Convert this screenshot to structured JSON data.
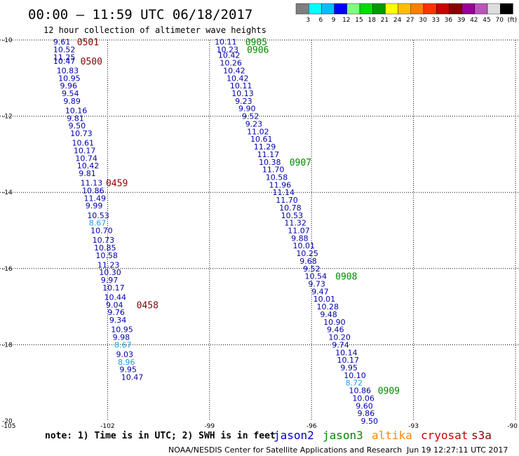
{
  "header": {
    "title": "00:00 – 11:59 UTC 06/18/2017",
    "subtitle": "12 hour collection of altimeter wave heights"
  },
  "colorbar": {
    "colors": [
      "#7f7f7f",
      "#00ffff",
      "#00bfff",
      "#0000ff",
      "#7fff7f",
      "#00dd00",
      "#009900",
      "#ffff00",
      "#ffbf00",
      "#ff7f00",
      "#ff3300",
      "#cc0000",
      "#880000",
      "#990099",
      "#bb55bb",
      "#dddddd",
      "#000000"
    ],
    "ticks": [
      "3",
      "6",
      "9",
      "12",
      "15",
      "18",
      "21",
      "24",
      "27",
      "30",
      "33",
      "36",
      "39",
      "42",
      "45",
      "70",
      "(ft)"
    ]
  },
  "axes": {
    "y_ticks": [
      "-10",
      "-12",
      "-14",
      "-16",
      "-18",
      "-20"
    ],
    "x_ticks": [
      "-105",
      "-102",
      "-99",
      "-96",
      "-93",
      "-90"
    ]
  },
  "footer": {
    "note": "note:  1) Time is in UTC;  2) SWH is in feet",
    "legend": [
      {
        "name": "jason2",
        "color": "#0000cc"
      },
      {
        "name": "jason3",
        "color": "#008800"
      },
      {
        "name": "altika",
        "color": "#ff8800"
      },
      {
        "name": "cryosat",
        "color": "#cc0000"
      },
      {
        "name": "s3a",
        "color": "#880000"
      }
    ],
    "credit": "NOAA/NESDIS Center for Satellite Applications and Research",
    "timestamp": "Jun 19 12:27:11 UTC 2017"
  },
  "chart_data": {
    "type": "scatter",
    "xlabel": "",
    "ylabel": "",
    "xlim": [
      -105,
      -90
    ],
    "ylim": [
      -20,
      -10
    ],
    "units": "ft",
    "series": [
      {
        "name": "s3a",
        "color": "#880000",
        "points": [
          {
            "x": -103.6,
            "y": -10.05,
            "v": "9.61"
          },
          {
            "x": -103.6,
            "y": -10.25,
            "v": "10.52"
          },
          {
            "x": -103.6,
            "y": -10.45,
            "v": "11.25"
          },
          {
            "x": -103.6,
            "y": -10.55,
            "v": "10.47"
          },
          {
            "x": -103.5,
            "y": -10.8,
            "v": "10.83"
          },
          {
            "x": -103.45,
            "y": -11.0,
            "v": "10.95"
          },
          {
            "x": -103.4,
            "y": -11.2,
            "v": "9.96"
          },
          {
            "x": -103.35,
            "y": -11.4,
            "v": "9.54"
          },
          {
            "x": -103.3,
            "y": -11.6,
            "v": "9.89"
          },
          {
            "x": -103.25,
            "y": -11.85,
            "v": "10.16"
          },
          {
            "x": -103.2,
            "y": -12.05,
            "v": "9.81"
          },
          {
            "x": -103.15,
            "y": -12.25,
            "v": "9.50"
          },
          {
            "x": -103.1,
            "y": -12.45,
            "v": "10.73"
          },
          {
            "x": -103.05,
            "y": -12.7,
            "v": "10.61"
          },
          {
            "x": -103.0,
            "y": -12.9,
            "v": "10.17"
          },
          {
            "x": -102.95,
            "y": -13.1,
            "v": "10.74"
          },
          {
            "x": -102.9,
            "y": -13.3,
            "v": "10.42"
          },
          {
            "x": -102.85,
            "y": -13.5,
            "v": "9.81"
          },
          {
            "x": -102.8,
            "y": -13.75,
            "v": "11.13"
          },
          {
            "x": -102.75,
            "y": -13.95,
            "v": "10.86"
          },
          {
            "x": -102.7,
            "y": -14.15,
            "v": "11.49"
          },
          {
            "x": -102.65,
            "y": -14.35,
            "v": "9.99"
          },
          {
            "x": -102.6,
            "y": -14.6,
            "v": "10.53"
          },
          {
            "x": -102.55,
            "y": -14.8,
            "v": "8.67"
          },
          {
            "x": -102.5,
            "y": -15.0,
            "v": "10.70"
          },
          {
            "x": -102.45,
            "y": -15.25,
            "v": "10.73"
          },
          {
            "x": -102.4,
            "y": -15.45,
            "v": "10.85"
          },
          {
            "x": -102.35,
            "y": -15.65,
            "v": "10.58"
          },
          {
            "x": -102.3,
            "y": -15.9,
            "v": "11.23"
          },
          {
            "x": -102.25,
            "y": -16.1,
            "v": "10.30"
          },
          {
            "x": -102.2,
            "y": -16.3,
            "v": "9.97"
          },
          {
            "x": -102.15,
            "y": -16.5,
            "v": "10.17"
          },
          {
            "x": -102.1,
            "y": -16.75,
            "v": "10.44"
          },
          {
            "x": -102.05,
            "y": -16.95,
            "v": "9.04"
          },
          {
            "x": -102.0,
            "y": -17.15,
            "v": "9.76"
          },
          {
            "x": -101.95,
            "y": -17.35,
            "v": "9.34"
          },
          {
            "x": -101.9,
            "y": -17.6,
            "v": "10.95"
          },
          {
            "x": -101.85,
            "y": -17.8,
            "v": "9.98"
          },
          {
            "x": -101.8,
            "y": -18.0,
            "v": "8.67"
          },
          {
            "x": -101.75,
            "y": -18.25,
            "v": "9.03"
          },
          {
            "x": -101.7,
            "y": -18.45,
            "v": "8.96"
          },
          {
            "x": -101.65,
            "y": -18.65,
            "v": "9.95"
          },
          {
            "x": -101.6,
            "y": -18.85,
            "v": "10.47"
          }
        ],
        "time_labels": [
          {
            "x": -102.9,
            "y": -10.05,
            "t": "0501"
          },
          {
            "x": -102.8,
            "y": -10.55,
            "t": "0500"
          },
          {
            "x": -102.05,
            "y": -13.75,
            "t": "0459"
          },
          {
            "x": -101.15,
            "y": -16.95,
            "t": "0458"
          }
        ]
      },
      {
        "name": "jason3",
        "color": "#008800",
        "points": [
          {
            "x": -98.85,
            "y": -10.05,
            "v": "10.11"
          },
          {
            "x": -98.8,
            "y": -10.25,
            "v": "10.23"
          },
          {
            "x": -98.75,
            "y": -10.4,
            "v": "10.42"
          },
          {
            "x": -98.7,
            "y": -10.6,
            "v": "10.26"
          },
          {
            "x": -98.6,
            "y": -10.8,
            "v": "10.42"
          },
          {
            "x": -98.5,
            "y": -11.0,
            "v": "10.42"
          },
          {
            "x": -98.4,
            "y": -11.2,
            "v": "10.11"
          },
          {
            "x": -98.35,
            "y": -11.4,
            "v": "10.13"
          },
          {
            "x": -98.25,
            "y": -11.6,
            "v": "9.23"
          },
          {
            "x": -98.15,
            "y": -11.8,
            "v": "9.90"
          },
          {
            "x": -98.05,
            "y": -12.0,
            "v": "9.52"
          },
          {
            "x": -97.95,
            "y": -12.2,
            "v": "9.23"
          },
          {
            "x": -97.9,
            "y": -12.4,
            "v": "11.02"
          },
          {
            "x": -97.8,
            "y": -12.6,
            "v": "10.61"
          },
          {
            "x": -97.7,
            "y": -12.8,
            "v": "11.29"
          },
          {
            "x": -97.6,
            "y": -13.0,
            "v": "11.17"
          },
          {
            "x": -97.55,
            "y": -13.2,
            "v": "10.38"
          },
          {
            "x": -97.45,
            "y": -13.4,
            "v": "11.70"
          },
          {
            "x": -97.35,
            "y": -13.6,
            "v": "10.58"
          },
          {
            "x": -97.25,
            "y": -13.8,
            "v": "11.96"
          },
          {
            "x": -97.15,
            "y": -14.0,
            "v": "11.14"
          },
          {
            "x": -97.05,
            "y": -14.2,
            "v": "11.70"
          },
          {
            "x": -96.95,
            "y": -14.4,
            "v": "10.78"
          },
          {
            "x": -96.9,
            "y": -14.6,
            "v": "10.53"
          },
          {
            "x": -96.8,
            "y": -14.8,
            "v": "11.32"
          },
          {
            "x": -96.7,
            "y": -15.0,
            "v": "11.07"
          },
          {
            "x": -96.6,
            "y": -15.2,
            "v": "9.88"
          },
          {
            "x": -96.55,
            "y": -15.4,
            "v": "10.01"
          },
          {
            "x": -96.45,
            "y": -15.6,
            "v": "10.25"
          },
          {
            "x": -96.35,
            "y": -15.8,
            "v": "9.68"
          },
          {
            "x": -96.25,
            "y": -16.0,
            "v": "9.52"
          },
          {
            "x": -96.2,
            "y": -16.2,
            "v": "10.54"
          },
          {
            "x": -96.1,
            "y": -16.4,
            "v": "9.73"
          },
          {
            "x": -96.0,
            "y": -16.6,
            "v": "9.47"
          },
          {
            "x": -95.95,
            "y": -16.8,
            "v": "10.01"
          },
          {
            "x": -95.85,
            "y": -17.0,
            "v": "10.28"
          },
          {
            "x": -95.75,
            "y": -17.2,
            "v": "9.48"
          },
          {
            "x": -95.65,
            "y": -17.4,
            "v": "10.90"
          },
          {
            "x": -95.55,
            "y": -17.6,
            "v": "9.46"
          },
          {
            "x": -95.5,
            "y": -17.8,
            "v": "10.20"
          },
          {
            "x": -95.4,
            "y": -18.0,
            "v": "9.74"
          },
          {
            "x": -95.3,
            "y": -18.2,
            "v": "10.14"
          },
          {
            "x": -95.25,
            "y": -18.4,
            "v": "10.17"
          },
          {
            "x": -95.15,
            "y": -18.6,
            "v": "9.95"
          },
          {
            "x": -95.05,
            "y": -18.8,
            "v": "10.10"
          },
          {
            "x": -95.0,
            "y": -19.0,
            "v": "8.72"
          },
          {
            "x": -94.9,
            "y": -19.2,
            "v": "10.86"
          },
          {
            "x": -94.8,
            "y": -19.4,
            "v": "10.06"
          },
          {
            "x": -94.7,
            "y": -19.6,
            "v": "9.60"
          },
          {
            "x": -94.65,
            "y": -19.8,
            "v": "9.86"
          },
          {
            "x": -94.55,
            "y": -20.0,
            "v": "9.50"
          }
        ],
        "time_labels": [
          {
            "x": -97.95,
            "y": -10.05,
            "t": "0905"
          },
          {
            "x": -97.9,
            "y": -10.25,
            "t": "0906"
          },
          {
            "x": -96.65,
            "y": -13.2,
            "t": "0907"
          },
          {
            "x": -95.3,
            "y": -16.2,
            "t": "0908"
          },
          {
            "x": -94.05,
            "y": -19.2,
            "t": "0909"
          }
        ]
      }
    ]
  }
}
